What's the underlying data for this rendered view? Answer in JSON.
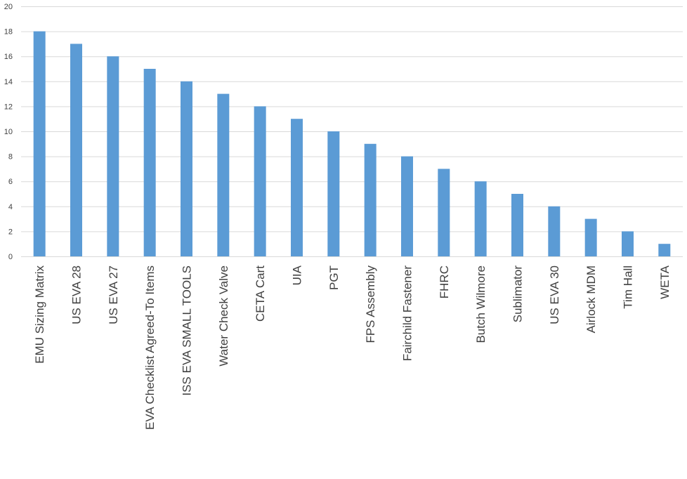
{
  "chart_data": {
    "type": "bar",
    "categories": [
      "EMU Sizing Matrix",
      "US EVA 28",
      "US EVA 27",
      "EVA Checklist Agreed-To Items",
      "ISS EVA SMALL TOOLS",
      "Water Check Valve",
      "CETA Cart",
      "UIA",
      "PGT",
      "FPS Assembly",
      "Fairchild Fastener",
      "FHRC",
      "Butch Wilmore",
      "Sublimator",
      "US EVA 30",
      "Airlock MDM",
      "Tim Hall",
      "WETA"
    ],
    "values": [
      18,
      17,
      16,
      15,
      14,
      13,
      12,
      11,
      10,
      9,
      8,
      7,
      6,
      5,
      4,
      3,
      2,
      1
    ],
    "yticks": [
      "0",
      "2",
      "4",
      "6",
      "8",
      "10",
      "12",
      "14",
      "16",
      "18",
      "20"
    ],
    "ylim": [
      0,
      20
    ],
    "grid": true,
    "title": "",
    "xlabel": "",
    "ylabel": "",
    "bar_color": "#5b9bd5"
  }
}
